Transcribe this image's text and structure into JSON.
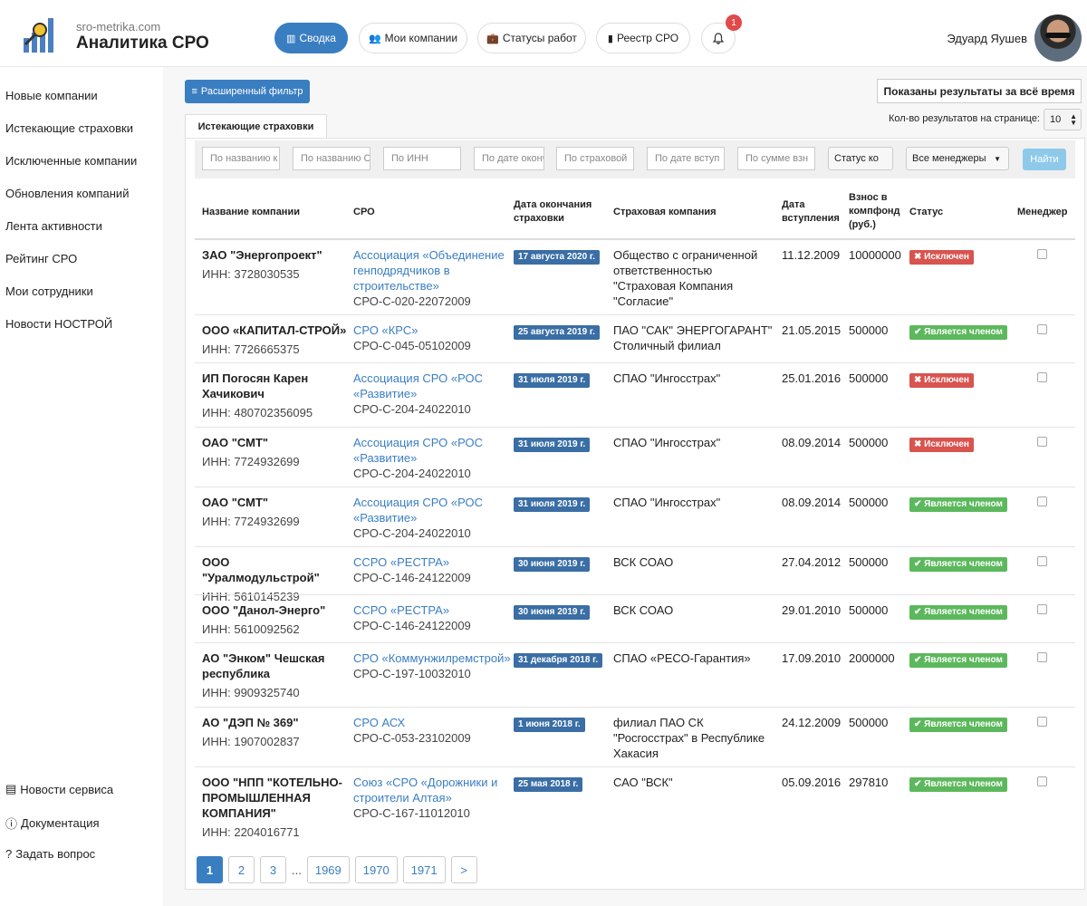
{
  "header": {
    "site": "sro-metrika.com",
    "title": "Аналитика СРО",
    "nav": [
      {
        "label": "Сводка",
        "icon": "bar-chart-icon",
        "active": true
      },
      {
        "label": "Мои компании",
        "icon": "users-icon",
        "active": false
      },
      {
        "label": "Статусы работ",
        "icon": "briefcase-icon",
        "active": false
      },
      {
        "label": "Реестр СРО",
        "icon": "book-icon",
        "active": false
      }
    ],
    "notifications": "1",
    "user": "Эдуард Яушев"
  },
  "sidebar": {
    "items": [
      "Новые компании",
      "Истекающие страховки",
      "Исключенные компании",
      "Обновления компаний",
      "Лента активности",
      "Рейтинг СРО",
      "Мои сотрудники",
      "Новости НОСТРОЙ"
    ],
    "footer": [
      "Новости сервиса",
      "Документация",
      "Задать вопрос"
    ]
  },
  "toolbar": {
    "filter_label": "Расширенный фильтр",
    "range_label": "Показаны результаты за всё время",
    "tab_label": "Истекающие страховки",
    "per_page_label": "Кол-во результатов на странице:",
    "per_page_value": "10"
  },
  "filters": {
    "placeholders": [
      "По названию к",
      "По названию С",
      "По ИНН",
      "По дате оконч",
      "По страховой",
      "По дате вступ",
      "По сумме взн"
    ],
    "status_select": "Статус ко",
    "manager_select": "Все менеджеры",
    "find_label": "Найти"
  },
  "table": {
    "headers": {
      "company": "Название компании",
      "sro": "СРО",
      "end_date": "Дата окончания страховки",
      "insurer": "Страховая компания",
      "join_date": "Дата вступления",
      "fee": "Взнос в компфонд (руб.)",
      "status": "Статус",
      "manager": "Менеджер"
    },
    "rows": [
      {
        "name": "ЗАО \"Энергопроект\"",
        "inn": "ИНН: 3728030535",
        "sro": "Ассоциация «Объединение генподрядчиков в строительстве»",
        "sro_num": "СРО-С-020-22072009",
        "end_date": "17 августа 2020 г.",
        "insurer": "Общество с ограниченной ответственностью \"Страховая Компания \"Согласие\"",
        "join_date": "11.12.2009",
        "fee": "10000000",
        "status": "Исключен",
        "status_type": "excl"
      },
      {
        "name": "ООО «КАПИТАЛ-СТРОЙ»",
        "inn": "ИНН: 7726665375",
        "sro": "СРО «КРС»",
        "sro_num": "СРО-С-045-05102009",
        "end_date": "25 августа 2019 г.",
        "insurer": "ПАО \"САК\" ЭНЕРГОГАРАНТ\" Столичный филиал",
        "join_date": "21.05.2015",
        "fee": "500000",
        "status": "Является членом",
        "status_type": "member"
      },
      {
        "name": "ИП Погосян Карен Хачикович",
        "inn": "ИНН: 480702356095",
        "sro": "Ассоциация СРО «РОС «Развитие»",
        "sro_num": "СРО-С-204-24022010",
        "end_date": "31 июля 2019 г.",
        "insurer": "СПАО \"Ингосстрах\"",
        "join_date": "25.01.2016",
        "fee": "500000",
        "status": "Исключен",
        "status_type": "excl"
      },
      {
        "name": "ОАО \"СМТ\"",
        "inn": "ИНН: 7724932699",
        "sro": "Ассоциация СРО «РОС «Развитие»",
        "sro_num": "СРО-С-204-24022010",
        "end_date": "31 июля 2019 г.",
        "insurer": "СПАО \"Ингосстрах\"",
        "join_date": "08.09.2014",
        "fee": "500000",
        "status": "Исключен",
        "status_type": "excl"
      },
      {
        "name": "ОАО \"СМТ\"",
        "inn": "ИНН: 7724932699",
        "sro": "Ассоциация СРО «РОС «Развитие»",
        "sro_num": "СРО-С-204-24022010",
        "end_date": "31 июля 2019 г.",
        "insurer": "СПАО \"Ингосстрах\"",
        "join_date": "08.09.2014",
        "fee": "500000",
        "status": "Является членом",
        "status_type": "member"
      },
      {
        "name": "ООО \"Уралмодульстрой\"",
        "inn": "ИНН: 5610145239",
        "sro": "ССРО «РЕСТРА»",
        "sro_num": "СРО-С-146-24122009",
        "end_date": "30 июня 2019 г.",
        "insurer": "ВСК СОАО",
        "join_date": "27.04.2012",
        "fee": "500000",
        "status": "Является членом",
        "status_type": "member"
      },
      {
        "name": "ООО \"Данол-Энерго\"",
        "inn": "ИНН: 5610092562",
        "sro": "ССРО «РЕСТРА»",
        "sro_num": "СРО-С-146-24122009",
        "end_date": "30 июня 2019 г.",
        "insurer": "ВСК СОАО",
        "join_date": "29.01.2010",
        "fee": "500000",
        "status": "Является членом",
        "status_type": "member"
      },
      {
        "name": "АО \"Энком\" Чешская республика",
        "inn": "ИНН: 9909325740",
        "sro": "СРО «Коммунжилремстрой»",
        "sro_num": "СРО-С-197-10032010",
        "end_date": "31 декабря 2018 г.",
        "insurer": "СПАО «РЕСО-Гарантия»",
        "join_date": "17.09.2010",
        "fee": "2000000",
        "status": "Является членом",
        "status_type": "member"
      },
      {
        "name": "АО \"ДЭП № 369\"",
        "inn": "ИНН: 1907002837",
        "sro": "СРО АСХ",
        "sro_num": "СРО-С-053-23102009",
        "end_date": "1 июня 2018 г.",
        "insurer": "филиал ПАО СК \"Росгосстрах\" в Республике Хакасия",
        "join_date": "24.12.2009",
        "fee": "500000",
        "status": "Является членом",
        "status_type": "member"
      },
      {
        "name": "ООО \"НПП \"КОТЕЛЬНО-ПРОМЫШЛЕННАЯ КОМПАНИЯ\"",
        "inn": "ИНН: 2204016771",
        "sro": "Союз «СРО «Дорожники и строители Алтая»",
        "sro_num": "СРО-С-167-11012010",
        "end_date": "25 мая 2018 г.",
        "insurer": "САО \"ВСК\"",
        "join_date": "05.09.2016",
        "fee": "297810",
        "status": "Является членом",
        "status_type": "member"
      }
    ]
  },
  "pagination": {
    "pages": [
      "1",
      "2",
      "3"
    ],
    "dots": "...",
    "last_pages": [
      "1969",
      "1970",
      "1971"
    ],
    "next": ">",
    "current": "1"
  }
}
